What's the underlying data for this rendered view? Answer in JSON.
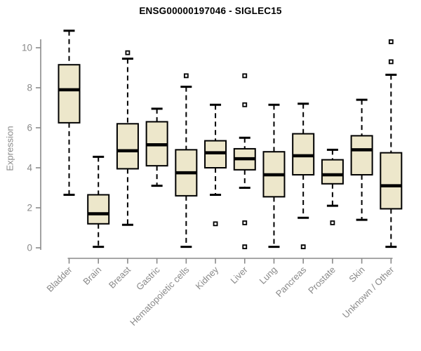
{
  "chart_data": {
    "type": "boxplot",
    "title": "ENSG00000197046 - SIGLEC15",
    "ylabel": "Expression",
    "xlabel": "",
    "ylim": [
      0,
      10
    ],
    "yticks": [
      0,
      2,
      4,
      6,
      8,
      10
    ],
    "grid": false,
    "legend": "none",
    "categories": [
      "Bladder",
      "Brain",
      "Breast",
      "Gastric",
      "Hematopoietic cells",
      "Kidney",
      "Liver",
      "Lung",
      "Pancreas",
      "Prostate",
      "Skin",
      "Unknown / Other"
    ],
    "boxes": [
      {
        "category": "Bladder",
        "whisker_low": 2.65,
        "q1": 6.25,
        "median": 7.9,
        "q3": 9.15,
        "whisker_high": 10.85,
        "outliers": []
      },
      {
        "category": "Brain",
        "whisker_low": 0.05,
        "q1": 1.2,
        "median": 1.7,
        "q3": 2.65,
        "whisker_high": 4.55,
        "outliers": []
      },
      {
        "category": "Breast",
        "whisker_low": 1.15,
        "q1": 3.95,
        "median": 4.85,
        "q3": 6.2,
        "whisker_high": 9.45,
        "outliers": [
          9.75
        ]
      },
      {
        "category": "Gastric",
        "whisker_low": 3.1,
        "q1": 4.1,
        "median": 5.15,
        "q3": 6.3,
        "whisker_high": 6.95,
        "outliers": []
      },
      {
        "category": "Hematopoietic cells",
        "whisker_low": 0.05,
        "q1": 2.6,
        "median": 3.75,
        "q3": 4.9,
        "whisker_high": 8.05,
        "outliers": [
          8.6
        ]
      },
      {
        "category": "Kidney",
        "whisker_low": 2.65,
        "q1": 4.0,
        "median": 4.75,
        "q3": 5.35,
        "whisker_high": 7.15,
        "outliers": [
          1.2
        ]
      },
      {
        "category": "Liver",
        "whisker_low": 3.0,
        "q1": 3.9,
        "median": 4.45,
        "q3": 4.95,
        "whisker_high": 5.5,
        "outliers": [
          8.6,
          7.15,
          1.25,
          0.05
        ]
      },
      {
        "category": "Lung",
        "whisker_low": 0.05,
        "q1": 2.55,
        "median": 3.65,
        "q3": 4.8,
        "whisker_high": 7.15,
        "outliers": []
      },
      {
        "category": "Pancreas",
        "whisker_low": 1.5,
        "q1": 3.65,
        "median": 4.6,
        "q3": 5.7,
        "whisker_high": 7.2,
        "outliers": [
          0.05
        ]
      },
      {
        "category": "Prostate",
        "whisker_low": 2.1,
        "q1": 3.2,
        "median": 3.65,
        "q3": 4.4,
        "whisker_high": 4.9,
        "outliers": [
          1.25
        ]
      },
      {
        "category": "Skin",
        "whisker_low": 1.4,
        "q1": 3.65,
        "median": 4.9,
        "q3": 5.6,
        "whisker_high": 7.4,
        "outliers": []
      },
      {
        "category": "Unknown / Other",
        "whisker_low": 0.05,
        "q1": 1.95,
        "median": 3.1,
        "q3": 4.75,
        "whisker_high": 8.65,
        "outliers": [
          10.3,
          9.3
        ]
      }
    ],
    "colors": {
      "box_fill": "#EDE7CB",
      "box_border": "#000000",
      "median": "#000000",
      "whisker": "#000000",
      "outlier_stroke": "#000000",
      "axis": "#8A8A8A",
      "tick_label": "#898989",
      "title": "#000000",
      "background": "#FFFFFF"
    }
  }
}
